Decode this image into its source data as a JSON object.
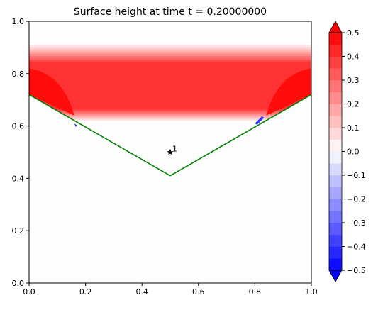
{
  "chart_data": {
    "type": "heatmap",
    "title": "Surface height at time t =     0.20000000",
    "xlabel": "",
    "ylabel": "",
    "xlim": [
      0,
      1
    ],
    "ylim": [
      0,
      1
    ],
    "x_ticks": [
      "0.0",
      "0.2",
      "0.4",
      "0.6",
      "0.8",
      "1.0"
    ],
    "y_ticks": [
      "0.0",
      "0.2",
      "0.4",
      "0.6",
      "0.8",
      "1.0"
    ],
    "grid": false,
    "colorbar": {
      "range": [
        -0.5,
        0.5
      ],
      "levels": [
        -0.5,
        -0.45,
        -0.4,
        -0.35,
        -0.3,
        -0.25,
        -0.2,
        -0.15,
        -0.1,
        -0.05,
        0.0,
        0.05,
        0.1,
        0.15,
        0.2,
        0.25,
        0.3,
        0.35,
        0.4,
        0.45,
        0.5
      ],
      "tick_labels": [
        "0.5",
        "0.4",
        "0.3",
        "0.2",
        "0.1",
        "0.0",
        "−0.1",
        "−0.2",
        "−0.3",
        "−0.4",
        "−0.5"
      ],
      "extend": "both",
      "colormap": "bwr",
      "min_color": "#0000ff",
      "mid_color": "#ffffff",
      "max_color": "#ff0000"
    },
    "band": {
      "y_bottom": 0.62,
      "y_top": 0.91,
      "peak_value": 0.4
    },
    "boundary_line": {
      "color": "#008000",
      "points": [
        [
          0.0,
          0.72
        ],
        [
          0.5,
          0.41
        ],
        [
          1.0,
          0.72
        ]
      ]
    },
    "marker": {
      "x": 0.5,
      "y": 0.5,
      "symbol": "star",
      "label": "1"
    }
  }
}
